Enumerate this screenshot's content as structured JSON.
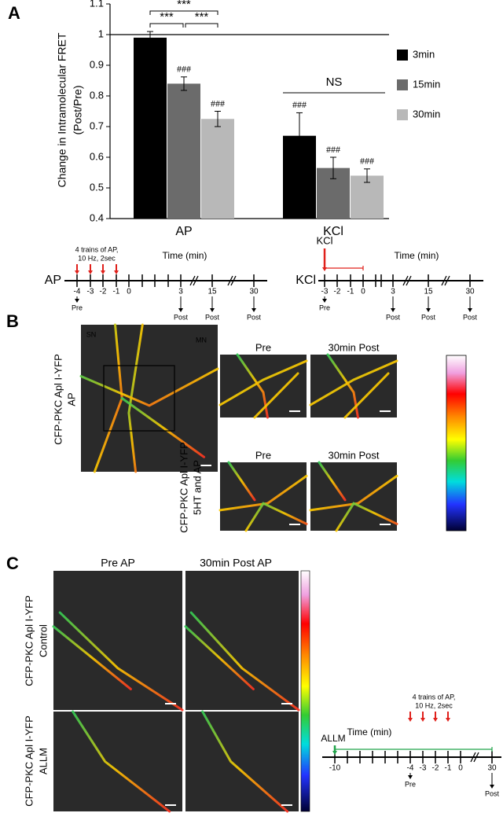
{
  "panels": {
    "a": "A",
    "b": "B",
    "c": "C"
  },
  "chart_data": {
    "type": "bar",
    "ylabel": [
      "Change in Intramolecular FRET",
      "(Post/Pre)"
    ],
    "categories": [
      "AP",
      "KCl"
    ],
    "series": [
      {
        "name": "3min",
        "color": "#000000",
        "values": [
          0.99,
          0.67
        ],
        "errors": [
          0.02,
          0.075
        ],
        "annotations": [
          null,
          "###"
        ]
      },
      {
        "name": "15min",
        "color": "#6b6b6b",
        "values": [
          0.84,
          0.565
        ],
        "errors": [
          0.022,
          0.035
        ],
        "annotations": [
          "###",
          "###"
        ]
      },
      {
        "name": "30min",
        "color": "#b8b8b8",
        "values": [
          0.725,
          0.54
        ],
        "errors": [
          0.025,
          0.022
        ],
        "annotations": [
          "###",
          "###"
        ]
      }
    ],
    "ylim": [
      0.4,
      1.1
    ],
    "yticks": [
      0.4,
      0.5,
      0.6,
      0.7,
      0.8,
      0.9,
      1,
      1.1
    ],
    "reference_line": 1,
    "comparisons": [
      "***",
      "***",
      "***",
      "NS"
    ],
    "legend": "right"
  },
  "timelines": [
    {
      "label": "AP",
      "stimulus": [
        "4 trains of AP,",
        "10 Hz, 2sec"
      ],
      "axis_title": "Time (min)",
      "ticks": [
        "-4",
        "-3",
        "-2",
        "-1",
        "0",
        "3",
        "15",
        "30"
      ],
      "pre": "Pre",
      "post": [
        "Post",
        "Post",
        "Post"
      ]
    },
    {
      "label": "KCl",
      "stimulus": [
        "KCl"
      ],
      "axis_title": "Time (min)",
      "ticks": [
        "-3",
        "-2",
        "-1",
        "0",
        "3",
        "15",
        "30"
      ],
      "pre": "Pre",
      "post": [
        "Post",
        "Post",
        "Post"
      ]
    },
    {
      "label": "ALLM",
      "stimulus": [
        "4 trains of AP,",
        "10 Hz, 2sec"
      ],
      "axis_title": "Time (min)",
      "ticks": [
        "-10",
        "-4",
        "-3",
        "-2",
        "-1",
        "0",
        "30"
      ],
      "pre": "Pre",
      "post": [
        "Post"
      ]
    }
  ],
  "panel_b": {
    "overview_label": [
      "CFP-PKC Apl I-YFP",
      "AP"
    ],
    "neurons": [
      "SN",
      "MN"
    ],
    "columns": [
      "Pre",
      "30min Post",
      "Pre",
      "30min Post"
    ],
    "row2_label": [
      "CFP-PKC Apl I-YFP",
      "5HT and AP"
    ]
  },
  "panel_c": {
    "columns": [
      "Pre AP",
      "30min Post AP"
    ],
    "rows": [
      [
        "CFP-PKC Apl I-YFP",
        "Control"
      ],
      [
        "CFP-PKC Apl I-YFP",
        "ALLM"
      ]
    ]
  }
}
